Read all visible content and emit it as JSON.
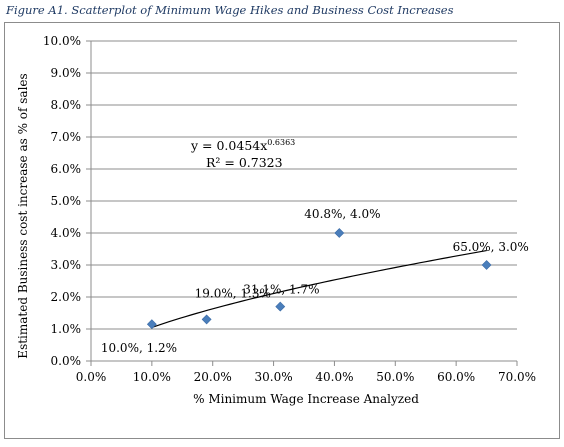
{
  "caption": "Figure A1. Scatterplot of Minimum Wage Hikes and Business Cost Increases",
  "chart_data": {
    "type": "scatter",
    "xlabel": "% Minimum Wage Increase Analyzed",
    "ylabel": "Estimated Business cost increase as % of sales",
    "xlim": [
      0.0,
      0.7
    ],
    "ylim": [
      0.0,
      0.1
    ],
    "x_ticks": [
      0.0,
      0.1,
      0.2,
      0.3,
      0.4,
      0.5,
      0.6,
      0.7
    ],
    "x_tick_labels": [
      "0.0%",
      "10.0%",
      "20.0%",
      "30.0%",
      "40.0%",
      "50.0%",
      "60.0%",
      "70.0%"
    ],
    "y_ticks": [
      0.0,
      0.01,
      0.02,
      0.03,
      0.04,
      0.05,
      0.06,
      0.07,
      0.08,
      0.09,
      0.1
    ],
    "y_tick_labels": [
      "0.0%",
      "1.0%",
      "2.0%",
      "3.0%",
      "4.0%",
      "5.0%",
      "6.0%",
      "7.0%",
      "8.0%",
      "9.0%",
      "10.0%"
    ],
    "grid": "horizontal",
    "marker_color": "#4a7ebb",
    "trendline": {
      "type": "power",
      "coefficient": 0.0454,
      "exponent": 0.6363,
      "equation_main": "y = 0.0454x",
      "equation_exponent": "0.6363",
      "r2_label": "R² = 0.7323"
    },
    "points": [
      {
        "x": 0.1,
        "y": 0.0115,
        "label": "10.0%, 1.2%"
      },
      {
        "x": 0.19,
        "y": 0.013,
        "label": "19.0%, 1.3%"
      },
      {
        "x": 0.311,
        "y": 0.017,
        "label": "31.1%, 1.7%"
      },
      {
        "x": 0.408,
        "y": 0.04,
        "label": "40.8%, 4.0%"
      },
      {
        "x": 0.65,
        "y": 0.03,
        "label": "65.0%, 3.0%"
      }
    ]
  }
}
